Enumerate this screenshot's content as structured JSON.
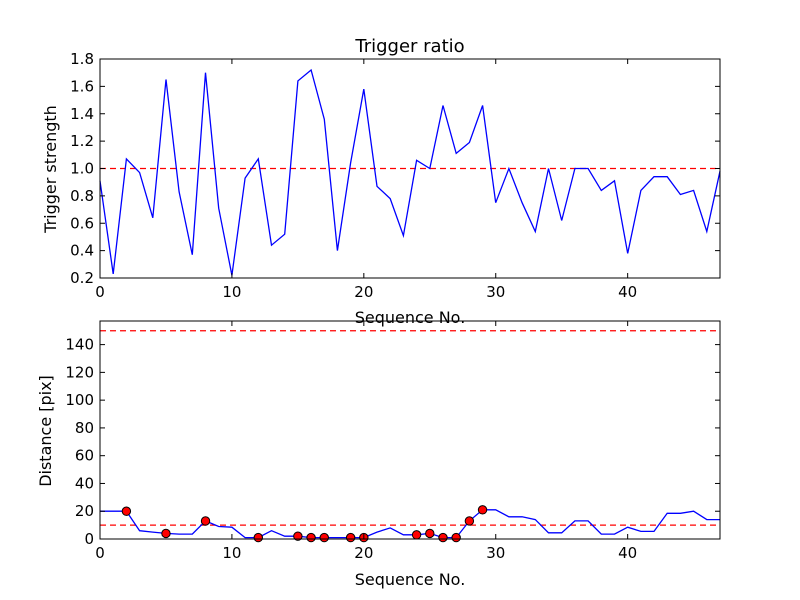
{
  "chart_data": [
    {
      "type": "line",
      "title": "Trigger ratio",
      "xlabel": "Sequence No.",
      "ylabel": "Trigger strength",
      "xlim": [
        0,
        47
      ],
      "ylim": [
        0.2,
        1.8
      ],
      "xticks": [
        0,
        10,
        20,
        30,
        40
      ],
      "yticks": [
        0.2,
        0.4,
        0.6,
        0.8,
        1.0,
        1.2,
        1.4,
        1.6,
        1.8
      ],
      "xtick_labels": [
        "0",
        "10",
        "20",
        "30",
        "40"
      ],
      "ytick_labels": [
        "0.2",
        "0.4",
        "0.6",
        "0.8",
        "1.0",
        "1.2",
        "1.4",
        "1.6",
        "1.8"
      ],
      "series": [
        {
          "name": "trigger strength",
          "color": "#0000ff",
          "x": [
            0,
            1,
            2,
            3,
            4,
            5,
            6,
            7,
            8,
            9,
            10,
            11,
            12,
            13,
            14,
            15,
            16,
            17,
            18,
            19,
            20,
            21,
            22,
            23,
            24,
            25,
            26,
            27,
            28,
            29,
            30,
            31,
            32,
            33,
            34,
            35,
            36,
            37,
            38,
            39,
            40,
            41,
            42,
            43,
            44,
            45,
            46,
            47
          ],
          "values": [
            0.91,
            0.23,
            1.07,
            0.97,
            0.64,
            1.65,
            0.83,
            0.37,
            1.7,
            0.71,
            0.22,
            0.93,
            1.07,
            0.44,
            0.52,
            1.64,
            1.72,
            1.36,
            0.4,
            1.04,
            1.58,
            0.87,
            0.78,
            0.51,
            1.06,
            1.0,
            1.46,
            1.11,
            1.19,
            1.46,
            0.75,
            1.0,
            0.75,
            0.54,
            1.0,
            0.62,
            1.0,
            1.0,
            0.84,
            0.91,
            0.38,
            0.84,
            0.94,
            0.94,
            0.81,
            0.84,
            0.54,
            0.98
          ]
        }
      ],
      "reference_lines": [
        {
          "y": 1.0,
          "color": "#ff0000",
          "style": "dashed"
        }
      ]
    },
    {
      "type": "line",
      "title": "",
      "xlabel": "Sequence No.",
      "ylabel": "Distance [pix]",
      "xlim": [
        0,
        47
      ],
      "ylim": [
        0,
        157
      ],
      "xticks": [
        0,
        10,
        20,
        30,
        40
      ],
      "yticks": [
        0,
        20,
        40,
        60,
        80,
        100,
        120,
        140
      ],
      "xtick_labels": [
        "0",
        "10",
        "20",
        "30",
        "40"
      ],
      "ytick_labels": [
        "0",
        "20",
        "40",
        "60",
        "80",
        "100",
        "120",
        "140"
      ],
      "series": [
        {
          "name": "distance",
          "color": "#0000ff",
          "x": [
            0,
            1,
            2,
            3,
            4,
            5,
            6,
            7,
            8,
            9,
            10,
            11,
            12,
            13,
            14,
            15,
            16,
            17,
            18,
            19,
            20,
            21,
            22,
            23,
            24,
            25,
            26,
            27,
            28,
            29,
            30,
            31,
            32,
            33,
            34,
            35,
            36,
            37,
            38,
            39,
            40,
            41,
            42,
            43,
            44,
            45,
            46,
            47
          ],
          "values": [
            20,
            20,
            20,
            6,
            5,
            4,
            3.5,
            3.5,
            13,
            9,
            8.5,
            1,
            1,
            6,
            2,
            2,
            1,
            1,
            1,
            1,
            1,
            5,
            8,
            3,
            3,
            4,
            1,
            1,
            13,
            21,
            21,
            16,
            16,
            14,
            4.5,
            4.5,
            13,
            13,
            3.5,
            3.5,
            8.5,
            5.5,
            5.5,
            18.5,
            18.5,
            20,
            14,
            14
          ]
        },
        {
          "name": "triggered",
          "type": "scatter",
          "color": "#ff0000",
          "x": [
            2,
            5,
            8,
            12,
            15,
            16,
            17,
            19,
            20,
            24,
            25,
            26,
            27,
            28,
            29
          ],
          "values": [
            20,
            4,
            13,
            1,
            2,
            1,
            1,
            1,
            1,
            3,
            4,
            1,
            1,
            13,
            21
          ]
        }
      ],
      "reference_lines": [
        {
          "y": 150,
          "color": "#ff0000",
          "style": "dashed"
        },
        {
          "y": 10,
          "color": "#ff0000",
          "style": "dashed"
        }
      ]
    }
  ]
}
